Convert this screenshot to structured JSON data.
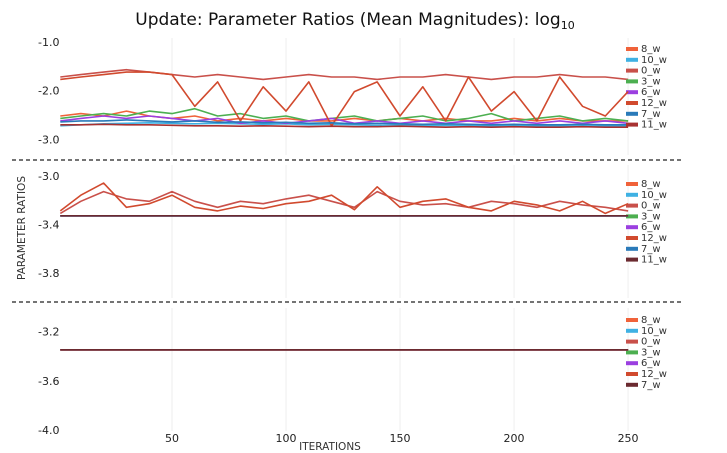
{
  "title": "Update: Parameter Ratios (Mean Magnitudes): log",
  "title_subscript": "10",
  "ylabel": "PARAMETER RATIOS",
  "xlabel": "ITERATIONS",
  "chart_data": [
    {
      "type": "line",
      "xlim": [
        0,
        264
      ],
      "xticks": [
        50,
        100,
        150,
        200,
        250
      ],
      "ylim": [
        -3.3,
        -0.9
      ],
      "yticks": [
        {
          "value": -1,
          "label": "-1.0"
        },
        {
          "value": -2,
          "label": "-2.0"
        },
        {
          "value": -3,
          "label": "-3.0"
        }
      ],
      "series": [
        {
          "name": "8_w",
          "color": "#f0623a",
          "x": [
            1,
            10,
            20,
            30,
            40,
            50,
            60,
            70,
            80,
            90,
            100,
            110,
            120,
            130,
            140,
            150,
            160,
            170,
            180,
            190,
            200,
            210,
            220,
            230,
            240,
            250
          ],
          "values": [
            -2.5,
            -2.45,
            -2.5,
            -2.4,
            -2.5,
            -2.55,
            -2.5,
            -2.6,
            -2.55,
            -2.6,
            -2.55,
            -2.6,
            -2.6,
            -2.55,
            -2.6,
            -2.55,
            -2.6,
            -2.55,
            -2.6,
            -2.6,
            -2.55,
            -2.6,
            -2.55,
            -2.6,
            -2.6,
            -2.6
          ]
        },
        {
          "name": "10_w",
          "color": "#3fb1e3",
          "x": [
            1,
            10,
            20,
            30,
            40,
            50,
            60,
            70,
            80,
            90,
            100,
            110,
            120,
            130,
            140,
            150,
            160,
            170,
            180,
            190,
            200,
            210,
            220,
            230,
            240,
            250
          ],
          "values": [
            -2.7,
            -2.68,
            -2.66,
            -2.65,
            -2.64,
            -2.65,
            -2.66,
            -2.65,
            -2.66,
            -2.67,
            -2.66,
            -2.68,
            -2.67,
            -2.68,
            -2.69,
            -2.68,
            -2.7,
            -2.69,
            -2.7,
            -2.7,
            -2.69,
            -2.7,
            -2.71,
            -2.7,
            -2.71,
            -2.7
          ]
        },
        {
          "name": "0_w",
          "color": "#c9504a",
          "x": [
            1,
            10,
            20,
            30,
            40,
            50,
            60,
            70,
            80,
            90,
            100,
            110,
            120,
            130,
            140,
            150,
            160,
            170,
            180,
            190,
            200,
            210,
            220,
            230,
            240,
            250
          ],
          "values": [
            -1.7,
            -1.65,
            -1.6,
            -1.55,
            -1.6,
            -1.65,
            -1.7,
            -1.65,
            -1.7,
            -1.75,
            -1.7,
            -1.65,
            -1.7,
            -1.7,
            -1.75,
            -1.7,
            -1.7,
            -1.65,
            -1.7,
            -1.75,
            -1.7,
            -1.7,
            -1.65,
            -1.7,
            -1.7,
            -1.75
          ]
        },
        {
          "name": "3_w",
          "color": "#4caf50",
          "x": [
            1,
            10,
            20,
            30,
            40,
            50,
            60,
            70,
            80,
            90,
            100,
            110,
            120,
            130,
            140,
            150,
            160,
            170,
            180,
            190,
            200,
            210,
            220,
            230,
            240,
            250
          ],
          "values": [
            -2.55,
            -2.5,
            -2.45,
            -2.5,
            -2.4,
            -2.45,
            -2.35,
            -2.5,
            -2.45,
            -2.55,
            -2.5,
            -2.6,
            -2.55,
            -2.5,
            -2.6,
            -2.55,
            -2.5,
            -2.6,
            -2.55,
            -2.45,
            -2.6,
            -2.55,
            -2.5,
            -2.6,
            -2.55,
            -2.6
          ]
        },
        {
          "name": "6_w",
          "color": "#9b3fe0",
          "x": [
            1,
            10,
            20,
            30,
            40,
            50,
            60,
            70,
            80,
            90,
            100,
            110,
            120,
            130,
            140,
            150,
            160,
            170,
            180,
            190,
            200,
            210,
            220,
            230,
            240,
            250
          ],
          "values": [
            -2.6,
            -2.55,
            -2.5,
            -2.55,
            -2.5,
            -2.55,
            -2.6,
            -2.55,
            -2.65,
            -2.6,
            -2.65,
            -2.6,
            -2.55,
            -2.65,
            -2.6,
            -2.65,
            -2.6,
            -2.65,
            -2.6,
            -2.65,
            -2.6,
            -2.65,
            -2.6,
            -2.65,
            -2.6,
            -2.65
          ]
        },
        {
          "name": "12_w",
          "color": "#d14a2e",
          "x": [
            1,
            10,
            20,
            30,
            40,
            50,
            60,
            70,
            80,
            90,
            100,
            110,
            120,
            130,
            140,
            150,
            160,
            170,
            180,
            190,
            200,
            210,
            220,
            230,
            240,
            250
          ],
          "values": [
            -1.75,
            -1.7,
            -1.65,
            -1.6,
            -1.6,
            -1.65,
            -2.3,
            -1.8,
            -2.6,
            -1.9,
            -2.4,
            -1.8,
            -2.7,
            -2.0,
            -1.8,
            -2.5,
            -1.9,
            -2.6,
            -1.7,
            -2.4,
            -2.0,
            -2.6,
            -1.7,
            -2.3,
            -2.5,
            -2.0
          ]
        },
        {
          "name": "7_w",
          "color": "#2a7ab9",
          "x": [
            1,
            10,
            20,
            30,
            40,
            50,
            60,
            70,
            80,
            90,
            100,
            110,
            120,
            130,
            140,
            150,
            160,
            170,
            180,
            190,
            200,
            210,
            220,
            230,
            240,
            250
          ],
          "values": [
            -2.62,
            -2.6,
            -2.6,
            -2.58,
            -2.6,
            -2.62,
            -2.6,
            -2.63,
            -2.62,
            -2.64,
            -2.63,
            -2.65,
            -2.64,
            -2.66,
            -2.65,
            -2.66,
            -2.67,
            -2.66,
            -2.67,
            -2.68,
            -2.67,
            -2.68,
            -2.68,
            -2.67,
            -2.68,
            -2.68
          ]
        },
        {
          "name": "11_w",
          "color": "#a83232",
          "x": [
            1,
            10,
            20,
            30,
            40,
            50,
            60,
            70,
            80,
            90,
            100,
            110,
            120,
            130,
            140,
            150,
            160,
            170,
            180,
            190,
            200,
            210,
            220,
            230,
            240,
            250
          ],
          "values": [
            -2.68,
            -2.68,
            -2.67,
            -2.68,
            -2.68,
            -2.69,
            -2.7,
            -2.7,
            -2.71,
            -2.7,
            -2.71,
            -2.72,
            -2.71,
            -2.72,
            -2.72,
            -2.71,
            -2.72,
            -2.73,
            -2.72,
            -2.73,
            -2.72,
            -2.73,
            -2.73,
            -2.72,
            -2.73,
            -2.73
          ]
        }
      ]
    },
    {
      "type": "line",
      "xlim": [
        0,
        264
      ],
      "xticks": [
        50,
        100,
        150,
        200,
        250
      ],
      "ylim": [
        -4.0,
        -2.9
      ],
      "yticks": [
        {
          "value": -3,
          "label": "-3.0"
        },
        -3.4,
        -3.8
      ],
      "series": [
        {
          "name": "8_w",
          "color": "#f0623a",
          "x": [
            1,
            250
          ],
          "values": [
            -3.32,
            -3.32
          ]
        },
        {
          "name": "10_w",
          "color": "#3fb1e3",
          "x": [
            1,
            250
          ],
          "values": [
            -3.32,
            -3.32
          ]
        },
        {
          "name": "0_w",
          "color": "#c9504a",
          "x": [
            1,
            10,
            20,
            30,
            40,
            50,
            60,
            70,
            80,
            90,
            100,
            110,
            120,
            130,
            140,
            150,
            160,
            170,
            180,
            190,
            200,
            210,
            220,
            230,
            240,
            250
          ],
          "values": [
            -3.3,
            -3.2,
            -3.12,
            -3.18,
            -3.2,
            -3.12,
            -3.2,
            -3.25,
            -3.2,
            -3.22,
            -3.18,
            -3.15,
            -3.2,
            -3.25,
            -3.12,
            -3.2,
            -3.23,
            -3.22,
            -3.25,
            -3.2,
            -3.22,
            -3.25,
            -3.2,
            -3.23,
            -3.25,
            -3.28
          ]
        },
        {
          "name": "3_w",
          "color": "#4caf50",
          "x": [
            1,
            250
          ],
          "values": [
            -3.32,
            -3.32
          ]
        },
        {
          "name": "6_w",
          "color": "#9b3fe0",
          "x": [
            1,
            250
          ],
          "values": [
            -3.32,
            -3.32
          ]
        },
        {
          "name": "12_w",
          "color": "#d14a2e",
          "x": [
            1,
            10,
            20,
            30,
            40,
            50,
            60,
            70,
            80,
            90,
            100,
            110,
            120,
            130,
            140,
            150,
            160,
            170,
            180,
            190,
            200,
            210,
            220,
            230,
            240,
            250
          ],
          "values": [
            -3.28,
            -3.15,
            -3.05,
            -3.25,
            -3.22,
            -3.15,
            -3.25,
            -3.28,
            -3.24,
            -3.26,
            -3.22,
            -3.2,
            -3.15,
            -3.27,
            -3.08,
            -3.25,
            -3.2,
            -3.18,
            -3.25,
            -3.28,
            -3.2,
            -3.23,
            -3.28,
            -3.2,
            -3.3,
            -3.22
          ]
        },
        {
          "name": "7_w",
          "color": "#2a7ab9",
          "x": [
            1,
            250
          ],
          "values": [
            -3.32,
            -3.32
          ]
        },
        {
          "name": "11_w",
          "color": "#6b2a30",
          "x": [
            1,
            250
          ],
          "values": [
            -3.32,
            -3.32
          ]
        }
      ]
    },
    {
      "type": "line",
      "xlim": [
        0,
        264
      ],
      "xticks": [
        50,
        100,
        150,
        200,
        250
      ],
      "ylim": [
        -4.0,
        -3.0
      ],
      "yticks": [
        -3.2,
        -3.6,
        {
          "value": -4,
          "label": "-4.0"
        }
      ],
      "series": [
        {
          "name": "8_w",
          "color": "#f0623a",
          "x": [
            1,
            250
          ],
          "values": [
            -3.34,
            -3.34
          ]
        },
        {
          "name": "10_w",
          "color": "#3fb1e3",
          "x": [
            1,
            250
          ],
          "values": [
            -3.34,
            -3.34
          ]
        },
        {
          "name": "0_w",
          "color": "#c9504a",
          "x": [
            1,
            250
          ],
          "values": [
            -3.34,
            -3.34
          ]
        },
        {
          "name": "3_w",
          "color": "#4caf50",
          "x": [
            1,
            250
          ],
          "values": [
            -3.34,
            -3.34
          ]
        },
        {
          "name": "6_w",
          "color": "#9b3fe0",
          "x": [
            1,
            250
          ],
          "values": [
            -3.34,
            -3.34
          ]
        },
        {
          "name": "12_w",
          "color": "#d14a2e",
          "x": [
            1,
            250
          ],
          "values": [
            -3.34,
            -3.34
          ]
        },
        {
          "name": "7_w",
          "color": "#6b2a30",
          "x": [
            1,
            250
          ],
          "values": [
            -3.34,
            -3.34
          ]
        }
      ]
    }
  ]
}
